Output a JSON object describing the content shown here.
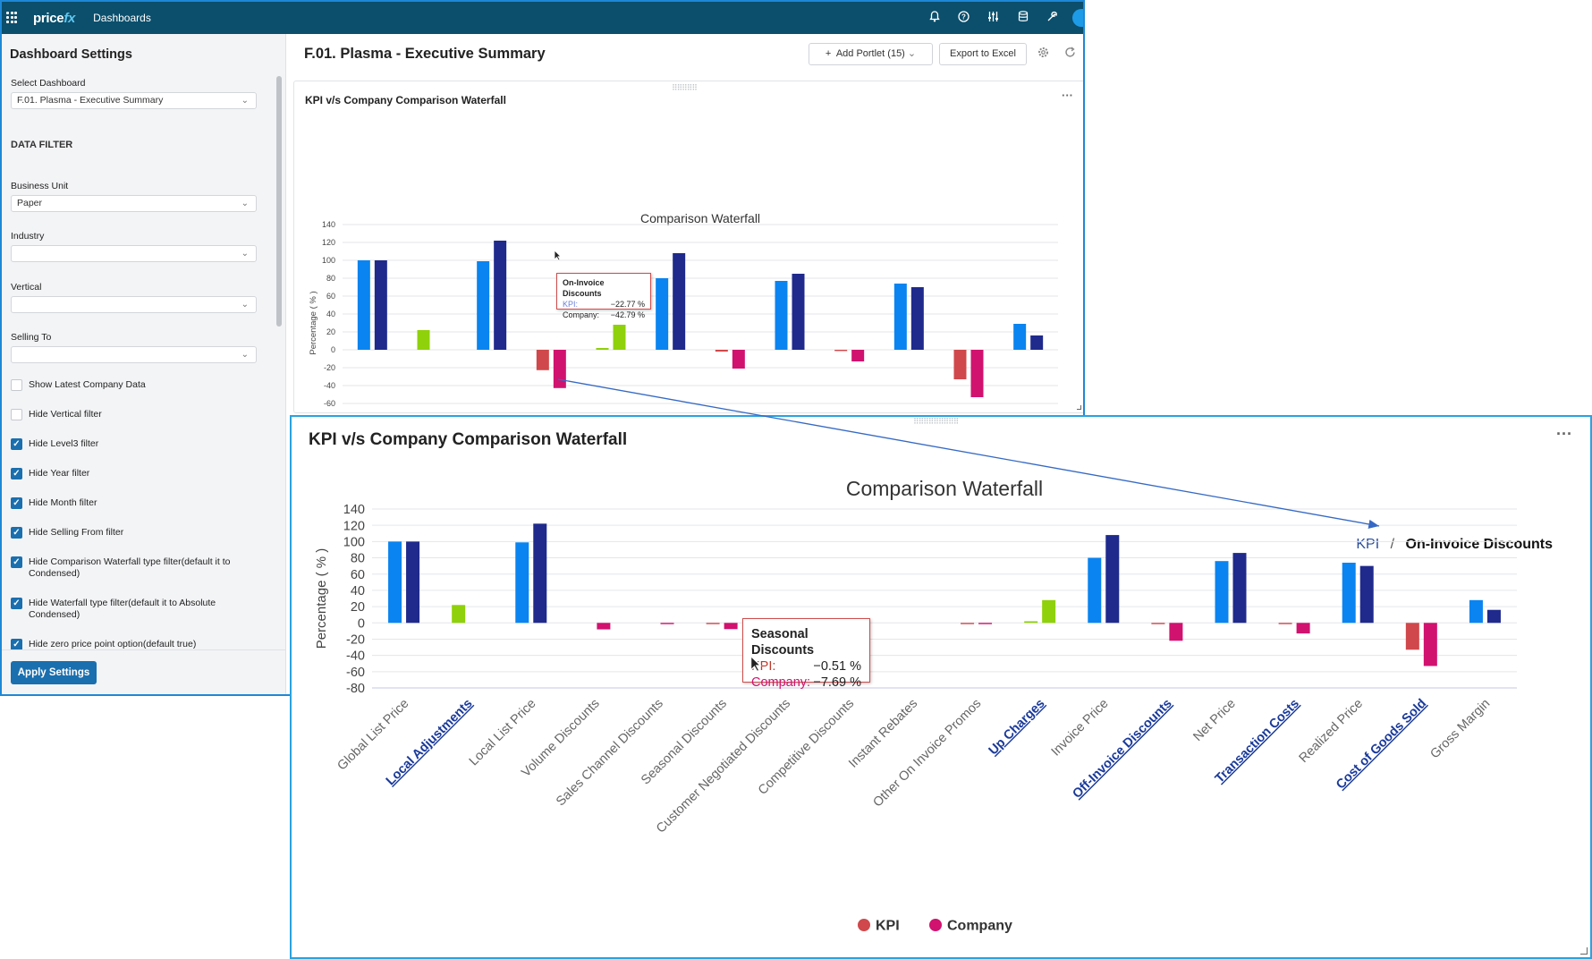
{
  "topbar": {
    "logo_main": "price",
    "logo_fx": "fx",
    "nav_title": "Dashboards",
    "icons": [
      "bell-icon",
      "help-icon",
      "sliders-icon",
      "database-icon",
      "tools-icon"
    ]
  },
  "sidebar": {
    "title": "Dashboard Settings",
    "select_dashboard_label": "Select Dashboard",
    "select_dashboard_value": "F.01. Plasma - Executive Summary",
    "data_filter_heading": "DATA FILTER",
    "business_unit_label": "Business Unit",
    "business_unit_value": "Paper",
    "industry_label": "Industry",
    "industry_value": "",
    "vertical_label": "Vertical",
    "vertical_value": "",
    "selling_to_label": "Selling To",
    "selling_to_value": "",
    "checkboxes": [
      {
        "label": "Show Latest Company Data",
        "checked": false
      },
      {
        "label": "Hide Vertical filter",
        "checked": false
      },
      {
        "label": "Hide Level3 filter",
        "checked": true
      },
      {
        "label": "Hide Year filter",
        "checked": true
      },
      {
        "label": "Hide Month filter",
        "checked": true
      },
      {
        "label": "Hide Selling From filter",
        "checked": true
      },
      {
        "label": "Hide Comparison Waterfall type filter(default it to Condensed)",
        "checked": true
      },
      {
        "label": "Hide Waterfall type filter(default it to Absolute Condensed)",
        "checked": true
      },
      {
        "label": "Hide zero price point option(default true)",
        "checked": true
      }
    ],
    "apply_label": "Apply Settings"
  },
  "main": {
    "title": "F.01. Plasma - Executive Summary",
    "add_portlet_label": "Add Portlet (15)",
    "export_label": "Export to Excel"
  },
  "portlet_small": {
    "title": "KPI v/s Company Comparison Waterfall",
    "tooltip": {
      "title": "On-Invoice Discounts",
      "kpi_label": "KPI:",
      "kpi_value": "−22.77 %",
      "company_label": "Company:",
      "company_value": "−42.79 %"
    }
  },
  "portlet_zoom": {
    "title": "KPI v/s Company Comparison Waterfall",
    "breadcrumb_root": "KPI",
    "breadcrumb_sep": "/",
    "breadcrumb_current": "On-Invoice Discounts",
    "tooltip": {
      "title": "Seasonal Discounts",
      "kpi_label": "KPI:",
      "kpi_value": "−0.51 %",
      "company_label": "Company:",
      "company_value": "−7.69 %"
    }
  },
  "colors": {
    "kpi_total": "#0a84f0",
    "company_total": "#1f2a8c",
    "kpi_positive": "#8fd10a",
    "company_positive": "#8fd10a",
    "kpi_negative": "#d0484b",
    "company_negative": "#d1126f",
    "drill_link": "#1a3a9a",
    "legend_kpi_small": "#7fb6ef",
    "legend_company_small": "#333333"
  },
  "chart_data": [
    {
      "type": "bar",
      "title": "Comparison Waterfall",
      "ylabel": "Percentage ( % )",
      "ylim": [
        -80,
        140
      ],
      "yticks": [
        140,
        120,
        100,
        80,
        60,
        40,
        20,
        0,
        -20,
        -40,
        -60,
        -80
      ],
      "grid": true,
      "legend": "bottom-center",
      "categories": [
        {
          "label": "Global List Price",
          "drill": false
        },
        {
          "label": "Local Adjustments",
          "drill": true
        },
        {
          "label": "Local List Price",
          "drill": false
        },
        {
          "label": "On-Invoice Discounts",
          "drill": true
        },
        {
          "label": "Up Charges",
          "drill": true
        },
        {
          "label": "Invoice Price",
          "drill": false
        },
        {
          "label": "Off-Invoice Discounts",
          "drill": true
        },
        {
          "label": "Net Price",
          "drill": false
        },
        {
          "label": "Transaction Costs",
          "drill": true
        },
        {
          "label": "Realized Price",
          "drill": false
        },
        {
          "label": "Cost of Goods Sold",
          "drill": true
        },
        {
          "label": "Gross Margin",
          "drill": false
        }
      ],
      "series": [
        {
          "name": "KPI",
          "values": [
            100,
            22,
            99,
            -22.77,
            2,
            80,
            -2,
            77,
            -1,
            74,
            -33,
            29
          ]
        },
        {
          "name": "Company",
          "values": [
            100,
            0,
            122,
            -42.79,
            28,
            108,
            -21,
            85,
            -13,
            70,
            -53,
            16
          ]
        }
      ]
    },
    {
      "type": "bar",
      "title": "Comparison Waterfall",
      "ylabel": "Percentage ( % )",
      "ylim": [
        -80,
        140
      ],
      "yticks": [
        140,
        120,
        100,
        80,
        60,
        40,
        20,
        0,
        -20,
        -40,
        -60,
        -80
      ],
      "grid": true,
      "legend": "bottom-center",
      "categories": [
        {
          "label": "Global List Price",
          "drill": false
        },
        {
          "label": "Local Adjustments",
          "drill": true
        },
        {
          "label": "Local List Price",
          "drill": false
        },
        {
          "label": "Volume Discounts",
          "drill": false
        },
        {
          "label": "Sales Channel Discounts",
          "drill": false
        },
        {
          "label": "Seasonal Discounts",
          "drill": false
        },
        {
          "label": "Customer Negotiated Discounts",
          "drill": false
        },
        {
          "label": "Competitive Discounts",
          "drill": false
        },
        {
          "label": "Instant Rebates",
          "drill": false
        },
        {
          "label": "Other On Invoice Promos",
          "drill": false
        },
        {
          "label": "Up Charges",
          "drill": true
        },
        {
          "label": "Invoice Price",
          "drill": false
        },
        {
          "label": "Off-Invoice Discounts",
          "drill": true
        },
        {
          "label": "Net Price",
          "drill": false
        },
        {
          "label": "Transaction Costs",
          "drill": true
        },
        {
          "label": "Realized Price",
          "drill": false
        },
        {
          "label": "Cost of Goods Sold",
          "drill": true
        },
        {
          "label": "Gross Margin",
          "drill": false
        }
      ],
      "series": [
        {
          "name": "KPI",
          "values": [
            100,
            22,
            99,
            0,
            0,
            -0.51,
            -1,
            -0.3,
            0,
            -0.5,
            2,
            80,
            -1,
            76,
            -1,
            74,
            -33,
            28
          ]
        },
        {
          "name": "Company",
          "values": [
            100,
            0,
            122,
            -8,
            -1,
            -7.69,
            -13,
            -0.5,
            0,
            -1,
            28,
            108,
            -22,
            86,
            -13,
            70,
            -53,
            16
          ]
        }
      ]
    }
  ]
}
